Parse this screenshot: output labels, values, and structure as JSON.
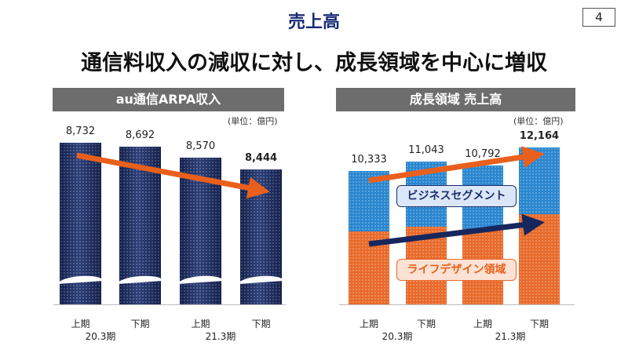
{
  "slide": {
    "title": "売上高",
    "page_number": "4",
    "subtitle": "通信料収入の減収に対し、成長領域を中心に増収"
  },
  "colors": {
    "navy": "#1c2f6e",
    "blue": "#2a86cf",
    "orange": "#e86a2a",
    "arrow_orange": "#e8601c",
    "arrow_navy": "#17275e"
  },
  "chart_data": [
    {
      "type": "bar",
      "title": "au通信ARPA収入",
      "unit": "(単位：億円)",
      "categories": [
        "上期",
        "下期",
        "上期",
        "下期"
      ],
      "period_labels": [
        "20.3期",
        "21.3期"
      ],
      "values": [
        8732,
        8692,
        8570,
        8444
      ],
      "value_labels": [
        "8,732",
        "8,692",
        "8,570",
        "8,444"
      ],
      "axis_break": true,
      "trend": "down",
      "ylim": [
        6990,
        8732
      ]
    },
    {
      "type": "bar",
      "stacked": true,
      "title": "成長領域 売上高",
      "unit": "(単位：億円)",
      "categories": [
        "上期",
        "下期",
        "上期",
        "下期"
      ],
      "period_labels": [
        "20.3期",
        "21.3期"
      ],
      "totals": [
        10333,
        11043,
        10792,
        12164
      ],
      "total_labels": [
        "10,333",
        "11,043",
        "10,792",
        "12,164"
      ],
      "series": [
        {
          "name": "ライフデザイン領域",
          "values": [
            5650,
            6030,
            5850,
            7000
          ]
        },
        {
          "name": "ビジネスセグメント",
          "values": [
            4683,
            5013,
            4942,
            5164
          ]
        }
      ],
      "ylim": [
        0,
        12164
      ]
    }
  ]
}
